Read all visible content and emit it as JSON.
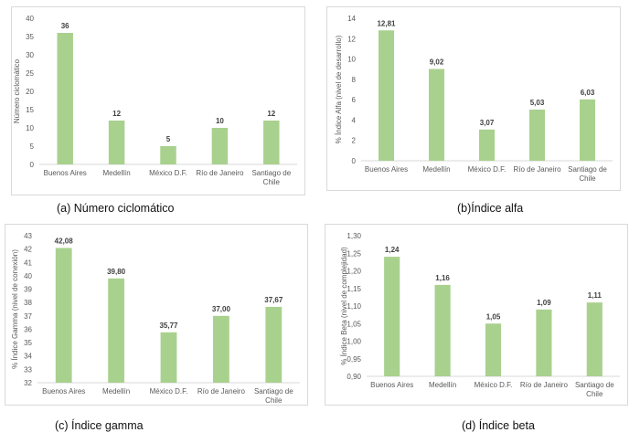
{
  "chart_data": [
    {
      "type": "bar",
      "categories": [
        "Buenos Aires",
        "Medellín",
        "México D.F.",
        "Río de Janeiro",
        "Santiago de Chile"
      ],
      "values": [
        36,
        12,
        5,
        10,
        12
      ],
      "value_labels": [
        "36",
        "12",
        "5",
        "10",
        "12"
      ],
      "tick_labels": [
        "0",
        "5",
        "10",
        "15",
        "20",
        "25",
        "30",
        "35",
        "40"
      ],
      "ylim": [
        0,
        40
      ],
      "ylabel": "Número ciclomático",
      "caption": "(a) Número ciclomático",
      "grid": false,
      "bar_color": "#a9d18e"
    },
    {
      "type": "bar",
      "categories": [
        "Buenos Aires",
        "Medellín",
        "México D.F.",
        "Río de Janeiro",
        "Santiago de Chile"
      ],
      "values": [
        12.81,
        9.02,
        3.07,
        5.03,
        6.03
      ],
      "value_labels": [
        "12,81",
        "9,02",
        "3,07",
        "5,03",
        "6,03"
      ],
      "tick_labels": [
        "0",
        "2",
        "4",
        "6",
        "8",
        "10",
        "12",
        "14"
      ],
      "ylim": [
        0,
        14
      ],
      "ylabel": "% Índice Alfa (nivel de desarrollo)",
      "caption": "(b)Índice alfa",
      "grid": false,
      "bar_color": "#a9d18e"
    },
    {
      "type": "bar",
      "categories": [
        "Buenos Aires",
        "Medellín",
        "México D.F.",
        "Río de Janeiro",
        "Santiago de Chile"
      ],
      "values": [
        42.08,
        39.8,
        35.77,
        37.0,
        37.67
      ],
      "value_labels": [
        "42,08",
        "39,80",
        "35,77",
        "37,00",
        "37,67"
      ],
      "tick_labels": [
        "32",
        "33",
        "34",
        "35",
        "36",
        "37",
        "38",
        "39",
        "40",
        "41",
        "42",
        "43"
      ],
      "ylim": [
        32,
        43
      ],
      "ylabel": "% Índice Gamma (nivel de conexión)",
      "caption": "(c) Índice gamma",
      "grid": false,
      "bar_color": "#a9d18e"
    },
    {
      "type": "bar",
      "categories": [
        "Buenos Aires",
        "Medellín",
        "México D.F.",
        "Río de Janeiro",
        "Santiago de Chile"
      ],
      "values": [
        1.24,
        1.16,
        1.05,
        1.09,
        1.11
      ],
      "value_labels": [
        "1,24",
        "1,16",
        "1,05",
        "1,09",
        "1,11"
      ],
      "tick_labels": [
        "0,90",
        "0,95",
        "1,00",
        "1,05",
        "1,10",
        "1,15",
        "1,20",
        "1,25",
        "1,30"
      ],
      "ylim": [
        0.9,
        1.3
      ],
      "ylabel": "% Índice Beta (nivel de complejidad)",
      "caption": "(d)    Índice beta",
      "grid": false,
      "bar_color": "#a9d18e"
    }
  ]
}
